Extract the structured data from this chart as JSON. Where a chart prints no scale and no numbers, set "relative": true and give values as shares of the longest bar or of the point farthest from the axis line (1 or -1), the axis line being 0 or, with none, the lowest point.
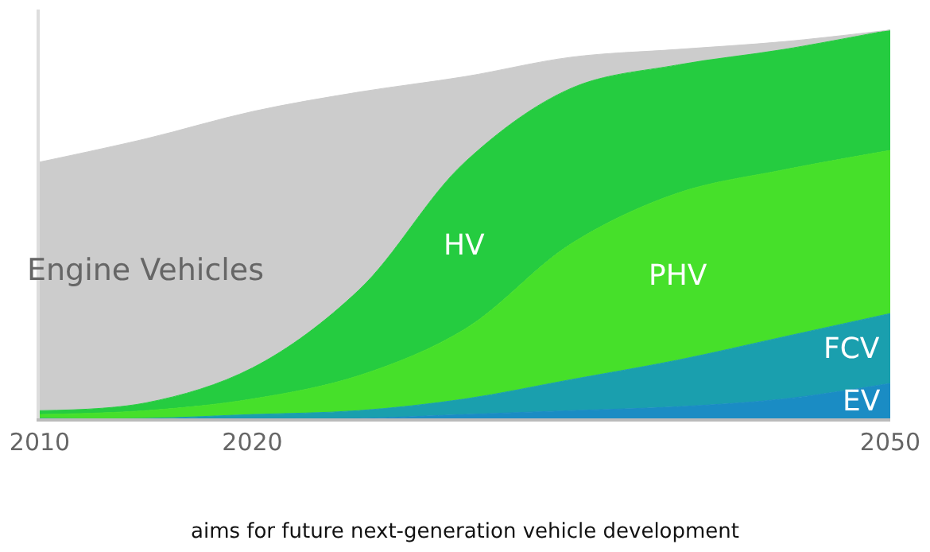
{
  "chart_data": {
    "type": "area",
    "stacked": true,
    "relative": true,
    "x": [
      2010,
      2015,
      2020,
      2025,
      2030,
      2035,
      2040,
      2045,
      2050
    ],
    "xlim": [
      2010,
      2050
    ],
    "xticks": [
      2010,
      2020,
      2050
    ],
    "legend": false,
    "annotations": [
      "aims for future next-generation vehicle development"
    ],
    "series": [
      {
        "name": "EV",
        "color": "#1a8cc4",
        "values": [
          0,
          0,
          0,
          0,
          0.01,
          0.02,
          0.03,
          0.05,
          0.09
        ]
      },
      {
        "name": "FCV",
        "color": "#1a9fae",
        "values": [
          0,
          0,
          0.01,
          0.02,
          0.04,
          0.08,
          0.12,
          0.16,
          0.18
        ]
      },
      {
        "name": "PHV",
        "color": "#46e02a",
        "values": [
          0.01,
          0.02,
          0.04,
          0.09,
          0.18,
          0.35,
          0.43,
          0.43,
          0.42
        ]
      },
      {
        "name": "HV",
        "color": "#25cc40",
        "values": [
          0.01,
          0.02,
          0.08,
          0.22,
          0.43,
          0.4,
          0.33,
          0.31,
          0.31
        ]
      },
      {
        "name": "Engine Vehicles",
        "color": "#cccccc",
        "values": [
          0.64,
          0.68,
          0.66,
          0.51,
          0.22,
          0.08,
          0.04,
          0.02,
          0.0
        ]
      }
    ]
  }
}
